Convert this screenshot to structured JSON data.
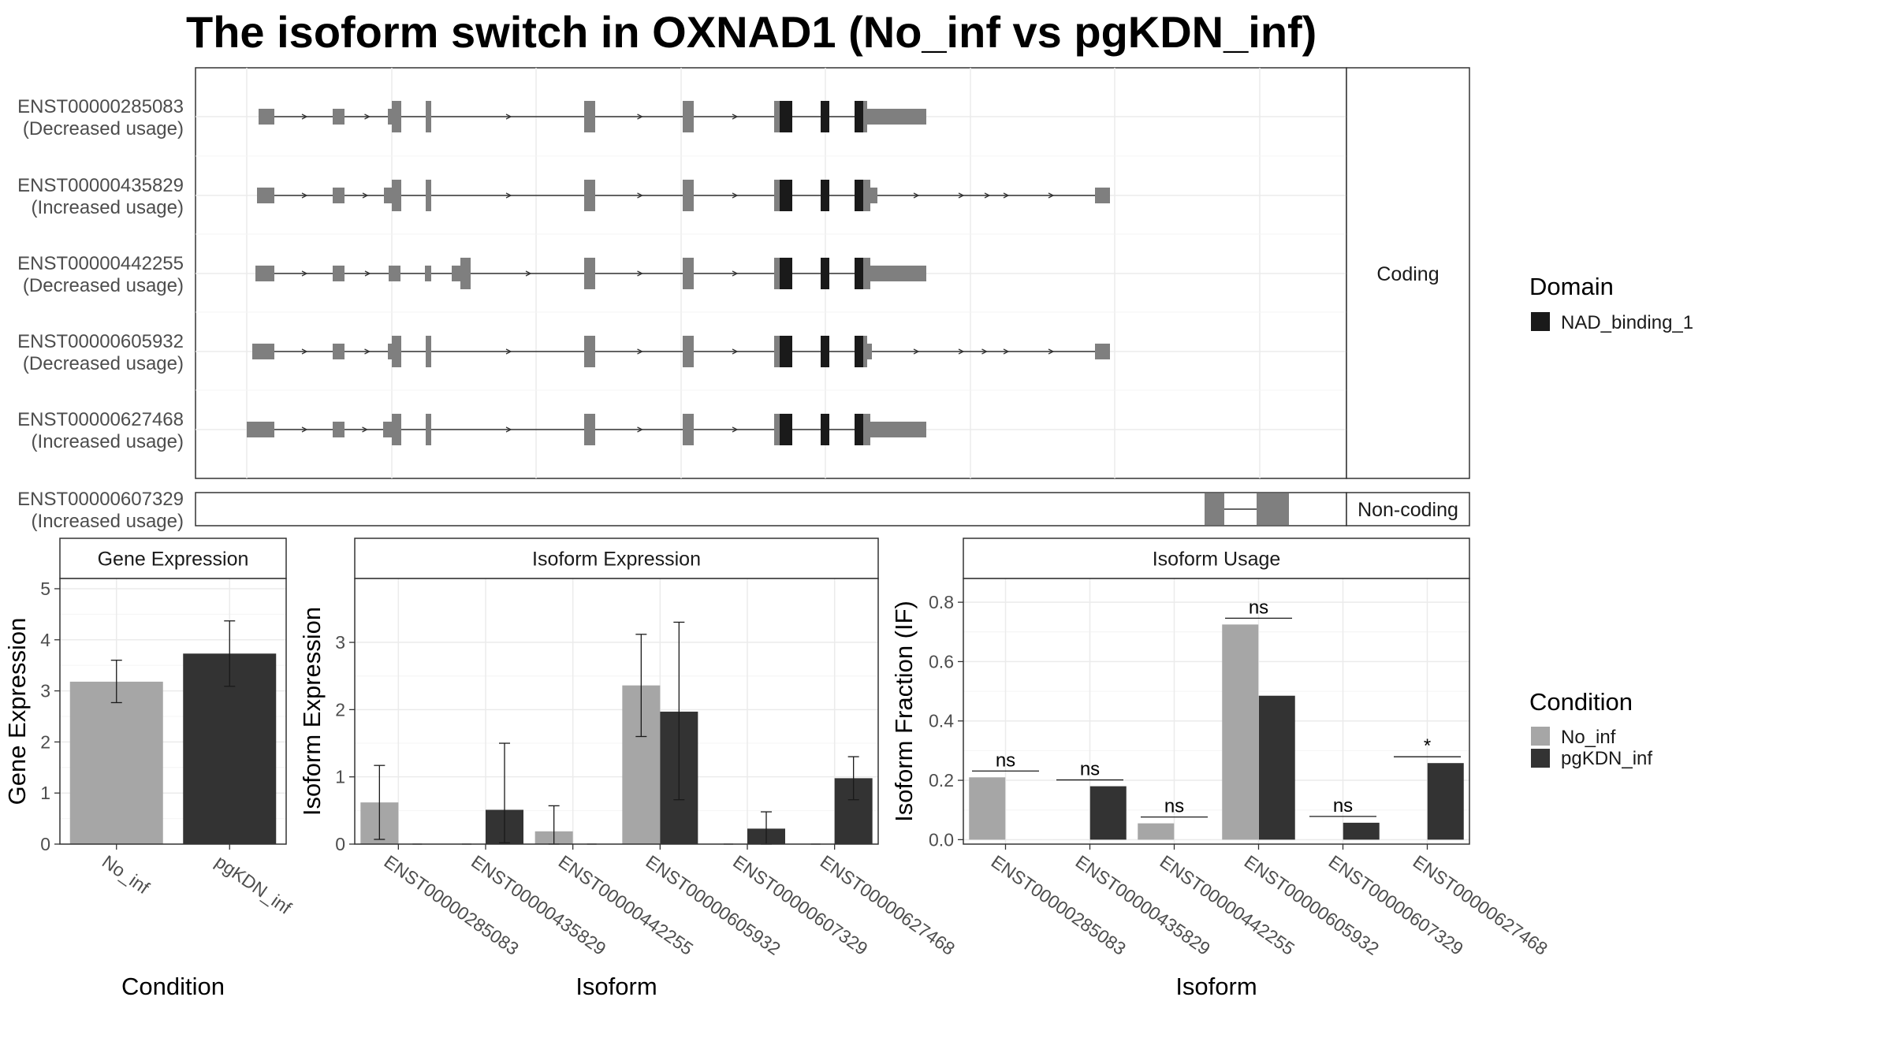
{
  "title": "The isoform switch in OXNAD1 (No_inf vs pgKDN_inf)",
  "legend_domain": {
    "title": "Domain",
    "items": [
      {
        "label": "NAD_binding_1",
        "color": "#1a1a1a"
      }
    ]
  },
  "legend_condition": {
    "title": "Condition",
    "items": [
      {
        "label": "No_inf",
        "color": "#a6a6a6"
      },
      {
        "label": "pgKDN_inf",
        "color": "#333333"
      }
    ]
  },
  "transcripts": {
    "facets": [
      {
        "label": "Coding"
      },
      {
        "label": "Non-coding"
      }
    ],
    "rows": [
      {
        "id": "ENST00000285083",
        "usage": "(Decreased usage)"
      },
      {
        "id": "ENST00000435829",
        "usage": "(Increased usage)"
      },
      {
        "id": "ENST00000442255",
        "usage": "(Decreased usage)"
      },
      {
        "id": "ENST00000605932",
        "usage": "(Decreased usage)"
      },
      {
        "id": "ENST00000627468",
        "usage": "(Increased usage)"
      },
      {
        "id": "ENST00000607329",
        "usage": "(Increased usage)"
      }
    ]
  },
  "chart_data": [
    {
      "type": "bar",
      "title": "Gene Expression",
      "xlabel": "Condition",
      "ylabel": "Gene Expression",
      "categories": [
        "No_inf",
        "pgKDN_inf"
      ],
      "values": [
        3.18,
        3.73
      ],
      "error": [
        [
          2.77,
          3.6
        ],
        [
          3.09,
          4.37
        ]
      ],
      "ylim": [
        0,
        5.2
      ],
      "yticks": [
        0,
        1,
        2,
        3,
        4,
        5
      ],
      "colors": [
        "#a6a6a6",
        "#333333"
      ]
    },
    {
      "type": "bar",
      "title": "Isoform Expression",
      "xlabel": "Isoform",
      "ylabel": "Isoform Expression",
      "categories": [
        "ENST00000285083",
        "ENST00000435829",
        "ENST00000442255",
        "ENST00000605932",
        "ENST00000607329",
        "ENST00000627468"
      ],
      "series": [
        {
          "name": "No_inf",
          "values": [
            0.62,
            0,
            0.19,
            2.36,
            0,
            0
          ],
          "error": [
            [
              0.07,
              1.17
            ],
            null,
            [
              0,
              0.57
            ],
            [
              1.6,
              3.12
            ],
            null,
            null
          ]
        },
        {
          "name": "pgKDN_inf",
          "values": [
            0,
            0.51,
            0,
            1.97,
            0.23,
            0.98
          ],
          "error": [
            null,
            [
              0.02,
              1.5
            ],
            null,
            [
              0.66,
              3.3
            ],
            [
              0,
              0.48
            ],
            [
              0.66,
              1.3
            ]
          ]
        }
      ],
      "ylim": [
        0,
        3.95
      ],
      "yticks": [
        0,
        1,
        2,
        3
      ]
    },
    {
      "type": "bar",
      "title": "Isoform Usage",
      "xlabel": "Isoform",
      "ylabel": "Isoform Fraction (IF)",
      "categories": [
        "ENST00000285083",
        "ENST00000435829",
        "ENST00000442255",
        "ENST00000605932",
        "ENST00000607329",
        "ENST00000627468"
      ],
      "series": [
        {
          "name": "No_inf",
          "values": [
            0.21,
            0,
            0.055,
            0.725,
            0,
            0
          ]
        },
        {
          "name": "pgKDN_inf",
          "values": [
            0,
            0.18,
            0,
            0.485,
            0.057,
            0.258
          ]
        }
      ],
      "significance": [
        "ns",
        "ns",
        "ns",
        "ns",
        "ns",
        "*"
      ],
      "ylim": [
        -0.015,
        0.88
      ],
      "yticks": [
        0.0,
        0.2,
        0.4,
        0.6,
        0.8
      ],
      "ytick_labels": [
        "0.0",
        "0.2",
        "0.4",
        "0.6",
        "0.8"
      ]
    }
  ]
}
